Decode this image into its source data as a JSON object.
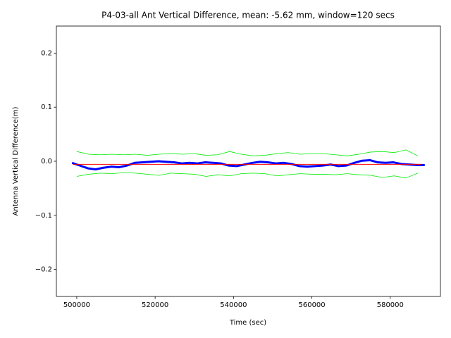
{
  "chart_data": {
    "type": "line",
    "title": "P4-03-all Ant Vertical Difference, mean: -5.62 mm, window=120 secs",
    "x_label": "Time (sec)",
    "y_label": "Antenna Vertical Difference(m)",
    "xlim": [
      494800,
      592800
    ],
    "ylim": [
      -0.25,
      0.25
    ],
    "xticks": [
      500000,
      520000,
      540000,
      560000,
      580000
    ],
    "yticks": [
      {
        "value": -0.2,
        "label": "−0.2"
      },
      {
        "value": -0.1,
        "label": "−0.1"
      },
      {
        "value": 0,
        "label": "0.0"
      },
      0.1,
      0.2
    ],
    "grid": false,
    "series": [
      {
        "color": "#0000ff",
        "width": 3,
        "x": [
          498800,
          500800,
          502800,
          504800,
          506800,
          508800,
          510800,
          512800,
          514800,
          516800,
          518800,
          520800,
          522800,
          524800,
          526800,
          528800,
          530800,
          532800,
          534800,
          536800,
          538800,
          540800,
          542800,
          544800,
          546800,
          548800,
          550800,
          552800,
          554800,
          556800,
          558800,
          560800,
          562800,
          564800,
          566800,
          568800,
          570800,
          572800,
          574800,
          576800,
          578800,
          580800,
          582800,
          584800,
          586800,
          588800
        ],
        "values": [
          -0.003,
          -0.008,
          -0.013,
          -0.015,
          -0.012,
          -0.01,
          -0.011,
          -0.008,
          -0.003,
          -0.002,
          -0.001,
          0.0,
          -0.001,
          -0.002,
          -0.004,
          -0.003,
          -0.004,
          -0.002,
          -0.003,
          -0.004,
          -0.008,
          -0.009,
          -0.006,
          -0.003,
          -0.001,
          -0.002,
          -0.004,
          -0.003,
          -0.005,
          -0.009,
          -0.01,
          -0.009,
          -0.008,
          -0.006,
          -0.009,
          -0.008,
          -0.003,
          0.001,
          0.002,
          -0.002,
          -0.003,
          -0.002,
          -0.005,
          -0.006,
          -0.007,
          -0.007
        ]
      },
      {
        "color": "#ff0000",
        "width": 1,
        "x": [
          499000,
          588000
        ],
        "values": [
          -0.00562,
          -0.00562
        ]
      },
      {
        "color": "#00ee00",
        "width": 0.8,
        "x": [
          500000,
          503000,
          506000,
          509000,
          512000,
          515000,
          518000,
          521000,
          524000,
          527000,
          530000,
          533000,
          536000,
          539000,
          542000,
          545000,
          548000,
          551000,
          554000,
          557000,
          560000,
          563000,
          566000,
          569000,
          572000,
          575000,
          578000,
          581000,
          584000,
          587000
        ],
        "values": [
          0.018,
          0.013,
          0.012,
          0.013,
          0.012,
          0.013,
          0.011,
          0.013,
          0.014,
          0.013,
          0.014,
          0.011,
          0.012,
          0.018,
          0.013,
          0.01,
          0.011,
          0.014,
          0.016,
          0.013,
          0.014,
          0.014,
          0.012,
          0.01,
          0.013,
          0.017,
          0.018,
          0.016,
          0.021,
          0.01
        ]
      },
      {
        "color": "#00ee00",
        "width": 0.8,
        "x": [
          500000,
          503000,
          506000,
          509000,
          512000,
          515000,
          518000,
          521000,
          524000,
          527000,
          530000,
          533000,
          536000,
          539000,
          542000,
          545000,
          548000,
          551000,
          554000,
          557000,
          560000,
          563000,
          566000,
          569000,
          572000,
          575000,
          578000,
          581000,
          584000,
          587000
        ],
        "values": [
          -0.028,
          -0.024,
          -0.022,
          -0.023,
          -0.021,
          -0.022,
          -0.024,
          -0.026,
          -0.022,
          -0.023,
          -0.024,
          -0.028,
          -0.025,
          -0.027,
          -0.023,
          -0.022,
          -0.023,
          -0.027,
          -0.025,
          -0.023,
          -0.024,
          -0.024,
          -0.025,
          -0.023,
          -0.025,
          -0.026,
          -0.03,
          -0.027,
          -0.031,
          -0.022
        ]
      }
    ]
  }
}
